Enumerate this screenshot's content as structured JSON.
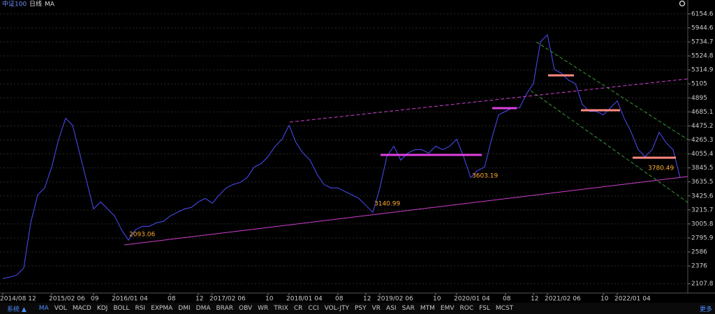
{
  "header": {
    "name": "中证100",
    "period": "日线",
    "indicator": "MA"
  },
  "toolbar": {
    "system": "系统 ▲",
    "tabs": [
      "MA",
      "VOL",
      "MACD",
      "KDJ",
      "BOLL",
      "RSI",
      "EXPMA",
      "DMI",
      "DMA",
      "BRAR",
      "OBV",
      "WR",
      "TRIX",
      "CR",
      "CCI",
      "VOL-JTY",
      "PSY",
      "VR",
      "ASI",
      "SAR",
      "MTM",
      "EMV",
      "ROC",
      "FSL",
      "MCST"
    ],
    "more": "更多"
  },
  "chart_data": {
    "type": "line",
    "x": [
      "2014/08 12",
      null,
      null,
      null,
      null,
      null,
      null,
      "2015/02 06",
      null,
      null,
      null,
      null,
      null,
      "09",
      null,
      null,
      "2016/01 04",
      null,
      null,
      null,
      null,
      null,
      null,
      null,
      "08",
      null,
      null,
      null,
      "12",
      null,
      "2017/02 06",
      null,
      null,
      null,
      null,
      null,
      null,
      null,
      "10",
      null,
      null,
      "2018/01 04",
      null,
      null,
      null,
      null,
      null,
      null,
      "08",
      null,
      null,
      null,
      "12",
      null,
      "2019/02 06",
      null,
      null,
      null,
      null,
      null,
      null,
      null,
      "10",
      null,
      null,
      "2020/01 04",
      null,
      null,
      null,
      null,
      null,
      null,
      "08",
      null,
      null,
      null,
      "12",
      null,
      "2021/02 06",
      null,
      null,
      null,
      null,
      null,
      null,
      null,
      "10",
      null,
      "2022/01 04",
      null,
      null,
      null,
      null,
      null,
      null,
      null,
      null,
      null
    ],
    "series": [
      {
        "color": "#4d4dff",
        "values": [
          2187,
          2208,
          2239,
          2344,
          3023,
          3441,
          3545,
          3858,
          4275,
          4589,
          4484,
          4067,
          3649,
          3231,
          3336,
          3231,
          3127,
          2918,
          2762,
          2918,
          2970,
          2970,
          3023,
          3044,
          3127,
          3179,
          3231,
          3252,
          3336,
          3388,
          3315,
          3441,
          3545,
          3597,
          3628,
          3701,
          3858,
          3910,
          4014,
          4171,
          4275,
          4484,
          4223,
          4067,
          3962,
          3753,
          3597,
          3545,
          3545,
          3492,
          3441,
          3388,
          3284,
          3179,
          3545,
          4014,
          4171,
          3962,
          4067,
          4119,
          4119,
          4067,
          4171,
          4119,
          4171,
          4275,
          4014,
          3701,
          3806,
          3858,
          4275,
          4641,
          4693,
          4745,
          4745,
          4954,
          5111,
          5737,
          5841,
          5319,
          5267,
          5163,
          5111,
          4798,
          4693,
          4693,
          4641,
          4745,
          4850,
          4589,
          4380,
          4119,
          4014,
          4119,
          4380,
          4223,
          4119,
          3701
        ]
      }
    ],
    "ylim": [
      1969,
      6363
    ],
    "yticks": [
      6154.6,
      5944.6,
      5734.7,
      5524.8,
      5314.9,
      5105.0,
      4895.0,
      4685.1,
      4475.2,
      4265.3,
      4055.4,
      3845.5,
      3635.5,
      3425.6,
      3215.7,
      3005.8,
      2795.9,
      2586.0,
      2376.0,
      2107.8
    ],
    "grid": true,
    "annotations": [
      "2093.06",
      "3140.99",
      "3603.19",
      "3780.49"
    ]
  }
}
